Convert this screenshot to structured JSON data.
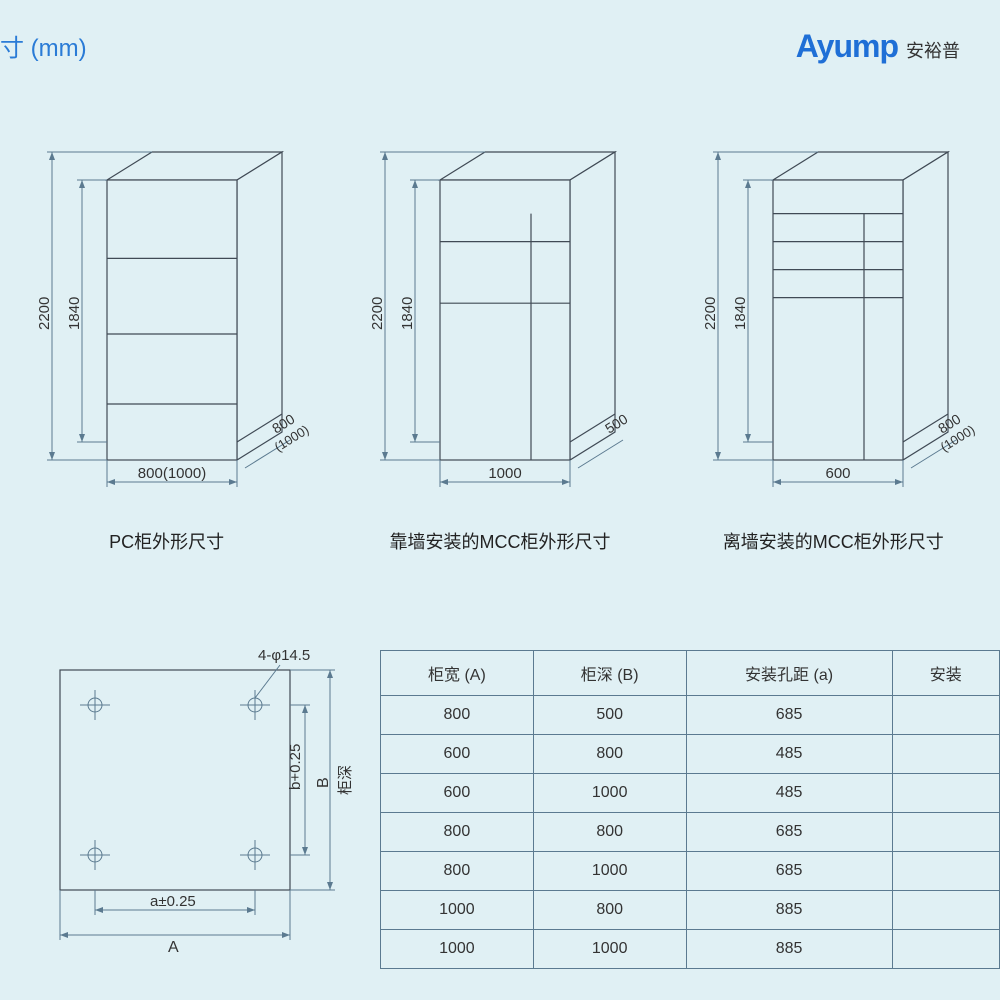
{
  "header_unit": "寸 (mm)",
  "logo": {
    "en": "Ayump",
    "cn": "安裕普"
  },
  "colors": {
    "bg": "#e0f0f4",
    "stroke": "#404a55",
    "dim": "#5b7a90",
    "accent": "#2a7bd6",
    "text": "#333333"
  },
  "cabinets": [
    {
      "height_outer": "2200",
      "height_inner": "1840",
      "width": "800(1000)",
      "depth_top": "800",
      "depth_bottom": "(1000)",
      "caption": "PC柜外形尺寸",
      "dividers": [
        0.28,
        0.55,
        0.8
      ]
    },
    {
      "height_outer": "2200",
      "height_inner": "1840",
      "width": "1000",
      "depth_top": "500",
      "depth_bottom": "",
      "caption": "靠墙安装的MCC柜外形尺寸",
      "dividers": [
        0.22,
        0.44
      ],
      "vertical_split": 0.7
    },
    {
      "height_outer": "2200",
      "height_inner": "1840",
      "width": "600",
      "depth_top": "800",
      "depth_bottom": "(1000)",
      "caption": "离墙安装的MCC柜外形尺寸",
      "dividers": [
        0.12,
        0.22,
        0.32,
        0.42
      ],
      "vertical_split": 0.7
    }
  ],
  "base_plan": {
    "hole_label": "4-φ14.5",
    "a_tol": "a±0.25",
    "a_label": "A",
    "b_tol": "b+0.25",
    "b_label": "B",
    "b_cn": "柜深"
  },
  "table": {
    "columns": [
      "柜宽 (A)",
      "柜深 (B)",
      "安装孔距 (a)",
      "安装"
    ],
    "rows": [
      [
        "800",
        "500",
        "685",
        ""
      ],
      [
        "600",
        "800",
        "485",
        ""
      ],
      [
        "600",
        "1000",
        "485",
        ""
      ],
      [
        "800",
        "800",
        "685",
        ""
      ],
      [
        "800",
        "1000",
        "685",
        ""
      ],
      [
        "1000",
        "800",
        "885",
        ""
      ],
      [
        "1000",
        "1000",
        "885",
        ""
      ]
    ]
  }
}
